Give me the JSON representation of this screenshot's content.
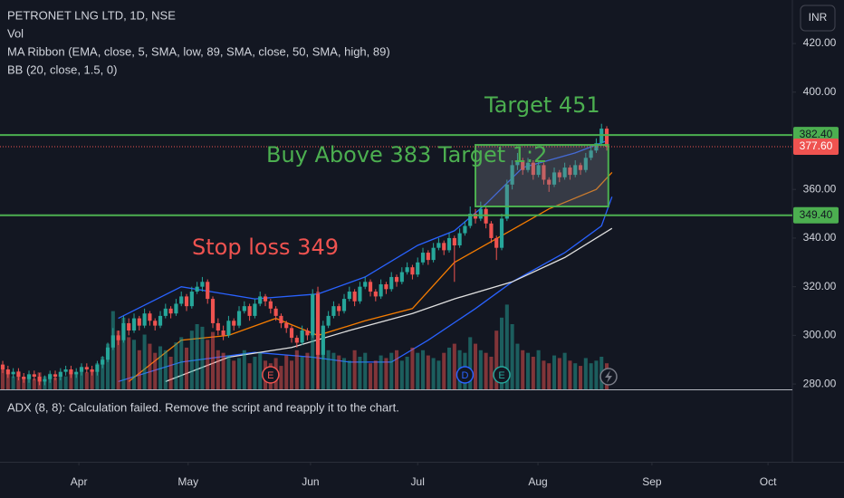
{
  "chart_data": {
    "type": "candlestick",
    "title": "PETRONET LNG LTD, 1D, NSE",
    "indicators": [
      "Vol",
      "MA Ribbon (EMA, close, 5, SMA, low, 89, SMA, close, 50, SMA, high, 89)",
      "BB (20, close, 1.5, 0)"
    ],
    "currency": "INR",
    "lower_pane_message": "ADX (8, 8): Calculation failed. Remove the script and reapply it to the chart.",
    "up_color": "#26a69a",
    "down_color": "#ef5350",
    "xlim": [
      -0.52,
      150.34
    ],
    "ylim": [
      277.8,
      437.9
    ],
    "yticks": [
      {
        "value": 420,
        "label": "420.00"
      },
      {
        "value": 400,
        "label": "400.00"
      },
      {
        "value": 360,
        "label": "360.00"
      },
      {
        "value": 340,
        "label": "340.00"
      },
      {
        "value": 320,
        "label": "320.00"
      },
      {
        "value": 300,
        "label": "300.00"
      },
      {
        "value": 280,
        "label": "280.00"
      }
    ],
    "xticks": [
      {
        "value": 14.5,
        "label": "Apr"
      },
      {
        "value": 35.3,
        "label": "May"
      },
      {
        "value": 58.6,
        "label": "Jun"
      },
      {
        "value": 79,
        "label": "Jul"
      },
      {
        "value": 101.9,
        "label": "Aug"
      },
      {
        "value": 123.6,
        "label": "Sep"
      },
      {
        "value": 145.7,
        "label": "Oct"
      }
    ],
    "candles": [
      [
        288,
        289.5,
        284.5,
        286
      ],
      [
        286,
        287.5,
        282.5,
        284
      ],
      [
        284,
        286.5,
        282.5,
        285
      ],
      [
        285,
        286.5,
        281.5,
        283
      ],
      [
        283,
        284.5,
        280.5,
        282
      ],
      [
        282,
        285.5,
        280.5,
        284
      ],
      [
        284,
        285.5,
        281.5,
        283
      ],
      [
        283,
        284.5,
        279.5,
        281
      ],
      [
        281,
        283.5,
        279.5,
        282
      ],
      [
        282,
        285.5,
        280.5,
        284
      ],
      [
        284,
        285.5,
        281.5,
        283
      ],
      [
        283,
        286.5,
        281.5,
        285
      ],
      [
        285,
        287.5,
        283.5,
        286
      ],
      [
        286,
        287.5,
        282.5,
        284
      ],
      [
        284,
        286.5,
        282.5,
        285
      ],
      [
        285,
        288.5,
        283.5,
        287
      ],
      [
        287,
        288.5,
        284.5,
        286
      ],
      [
        286,
        287.5,
        283.5,
        285
      ],
      [
        285,
        289.5,
        283.5,
        288
      ],
      [
        288,
        291.5,
        286.5,
        290
      ],
      [
        290,
        297,
        289,
        295
      ],
      [
        295,
        303,
        294,
        300
      ],
      [
        300,
        302,
        296,
        298
      ],
      [
        298,
        308,
        297,
        305
      ],
      [
        305,
        307,
        300,
        302
      ],
      [
        302,
        309,
        301,
        307
      ],
      [
        307,
        308,
        302,
        304
      ],
      [
        304,
        311,
        303,
        309
      ],
      [
        309,
        310,
        304,
        306
      ],
      [
        306,
        307,
        302,
        304
      ],
      [
        304,
        310,
        303,
        308
      ],
      [
        308,
        313,
        307,
        311
      ],
      [
        311,
        312,
        307,
        309
      ],
      [
        309,
        315,
        308,
        313
      ],
      [
        313,
        318,
        312,
        316
      ],
      [
        316,
        317,
        310,
        312
      ],
      [
        312,
        320,
        311,
        318
      ],
      [
        318,
        322,
        317,
        320
      ],
      [
        320,
        324,
        318,
        322
      ],
      [
        322,
        323,
        313,
        315
      ],
      [
        315,
        316,
        303,
        305
      ],
      [
        305,
        307,
        300,
        302
      ],
      [
        302,
        304,
        298,
        300
      ],
      [
        300,
        308,
        299,
        306
      ],
      [
        306,
        307,
        302,
        304
      ],
      [
        304,
        312,
        303,
        310
      ],
      [
        310,
        314,
        309,
        312
      ],
      [
        312,
        313,
        306,
        308
      ],
      [
        308,
        315,
        307,
        313
      ],
      [
        313,
        318,
        312,
        316
      ],
      [
        316,
        317,
        312,
        314
      ],
      [
        314,
        315,
        309,
        311
      ],
      [
        311,
        312,
        306,
        308
      ],
      [
        308,
        309,
        303,
        305
      ],
      [
        305,
        306,
        301,
        303
      ],
      [
        303,
        304,
        297,
        299
      ],
      [
        299,
        300,
        295,
        297
      ],
      [
        297,
        304,
        296,
        302
      ],
      [
        302,
        303,
        298,
        300
      ],
      [
        300,
        319,
        299,
        317
      ],
      [
        317,
        320,
        278,
        292
      ],
      [
        292,
        306,
        290,
        304
      ],
      [
        304,
        310,
        303,
        308
      ],
      [
        308,
        314,
        307,
        312
      ],
      [
        312,
        313,
        308,
        310
      ],
      [
        310,
        317,
        309,
        315
      ],
      [
        315,
        320,
        314,
        318
      ],
      [
        318,
        319,
        312,
        314
      ],
      [
        314,
        322,
        313,
        320
      ],
      [
        320,
        324,
        319,
        322
      ],
      [
        322,
        323,
        316,
        318
      ],
      [
        318,
        319,
        314,
        316
      ],
      [
        316,
        323,
        315,
        321
      ],
      [
        321,
        322,
        317,
        319
      ],
      [
        319,
        326,
        318,
        324
      ],
      [
        324,
        325,
        320,
        322
      ],
      [
        322,
        328,
        321,
        326
      ],
      [
        326,
        330,
        325,
        328
      ],
      [
        328,
        329,
        323,
        325
      ],
      [
        325,
        332,
        324,
        330
      ],
      [
        330,
        336,
        329,
        334
      ],
      [
        334,
        335,
        329,
        331
      ],
      [
        331,
        338,
        330,
        336
      ],
      [
        336,
        340,
        335,
        338
      ],
      [
        338,
        339,
        333,
        335
      ],
      [
        335,
        342,
        334,
        340
      ],
      [
        340,
        341,
        322,
        337
      ],
      [
        337,
        344,
        336,
        342
      ],
      [
        342,
        347,
        341,
        345
      ],
      [
        345,
        353,
        344,
        350
      ],
      [
        350,
        352,
        346,
        348
      ],
      [
        348,
        355,
        347,
        352
      ],
      [
        352,
        353,
        344,
        346
      ],
      [
        346,
        347,
        338,
        340
      ],
      [
        340,
        341,
        331,
        336
      ],
      [
        336,
        350,
        335,
        348
      ],
      [
        348,
        364,
        347,
        362
      ],
      [
        362,
        372,
        360,
        370
      ],
      [
        370,
        375,
        368,
        372
      ],
      [
        372,
        373,
        366,
        368
      ],
      [
        368,
        373,
        367,
        371
      ],
      [
        371,
        372,
        364,
        366
      ],
      [
        366,
        372,
        365,
        370
      ],
      [
        370,
        371,
        362,
        364
      ],
      [
        364,
        365,
        359,
        362
      ],
      [
        362,
        369,
        361,
        367
      ],
      [
        367,
        368,
        363,
        365
      ],
      [
        365,
        371,
        364,
        369
      ],
      [
        369,
        370,
        364,
        366
      ],
      [
        366,
        372,
        365,
        370
      ],
      [
        370,
        371,
        366,
        368
      ],
      [
        368,
        375,
        367,
        373
      ],
      [
        373,
        378,
        372,
        376
      ],
      [
        376,
        381,
        375,
        379
      ],
      [
        379,
        387,
        378,
        385
      ],
      [
        385,
        386,
        376,
        377.6
      ]
    ],
    "volumes": [
      18,
      12,
      10,
      14,
      9,
      11,
      8,
      13,
      10,
      12,
      9,
      11,
      10,
      14,
      12,
      16,
      13,
      15,
      20,
      25,
      35,
      60,
      45,
      55,
      40,
      38,
      30,
      42,
      35,
      28,
      33,
      30,
      25,
      36,
      40,
      32,
      45,
      50,
      48,
      38,
      44,
      30,
      28,
      26,
      22,
      24,
      30,
      20,
      25,
      28,
      22,
      20,
      24,
      18,
      26,
      22,
      30,
      25,
      28,
      55,
      75,
      45,
      30,
      28,
      26,
      24,
      22,
      30,
      25,
      28,
      20,
      22,
      26,
      24,
      28,
      30,
      22,
      25,
      32,
      28,
      30,
      26,
      24,
      22,
      28,
      32,
      35,
      30,
      28,
      40,
      35,
      30,
      28,
      25,
      45,
      55,
      65,
      50,
      35,
      30,
      28,
      25,
      30,
      22,
      20,
      26,
      24,
      28,
      22,
      20,
      18,
      24,
      20,
      22,
      25,
      20
    ],
    "lines": [
      {
        "color": "#2962ff",
        "x": [
          22,
          34,
          48,
          60,
          69,
          79,
          86,
          92,
          99,
          109,
          115
        ],
        "values": [
          307,
          320,
          315,
          317,
          324,
          337,
          343,
          354,
          369,
          375,
          380
        ]
      },
      {
        "color": "#2962ff",
        "x": [
          22,
          34,
          48,
          59,
          66,
          74,
          81,
          90,
          97,
          107,
          114,
          116
        ],
        "values": [
          281,
          289,
          293,
          291,
          289,
          289,
          298,
          311,
          322,
          334,
          345,
          357
        ]
      },
      {
        "color": "#f57c00",
        "x": [
          24,
          34,
          43,
          52,
          60,
          69,
          78,
          86,
          95,
          104,
          113,
          116
        ],
        "values": [
          281,
          298,
          300,
          307,
          300,
          306,
          311,
          330,
          341,
          352,
          360,
          367
        ]
      },
      {
        "color": "#e0e0e0",
        "x": [
          31,
          43,
          55,
          66,
          78,
          86,
          97,
          107,
          116
        ],
        "values": [
          281,
          291,
          295,
          302,
          309,
          315,
          322,
          332,
          344
        ]
      }
    ],
    "levels": [
      {
        "value": 382.4,
        "label": "382.40",
        "color": "#4caf50"
      },
      {
        "value": 349.4,
        "label": "349.40",
        "color": "#4caf50"
      }
    ],
    "last_price": {
      "value": 377.6,
      "label": "377.60",
      "color": "#ef5350"
    },
    "box": {
      "x": [
        90,
        115.3
      ],
      "y": [
        353,
        378.3
      ],
      "color": "#4caf50"
    },
    "annotations": [
      {
        "text": "Target 451",
        "color": "#4caf50"
      },
      {
        "text": "Buy Above 383 Target 1:2",
        "color": "#4caf50"
      },
      {
        "text": "Stop loss 349",
        "color": "#ef5350"
      }
    ],
    "events": [
      {
        "x": 51,
        "label": "E",
        "color": "#ef5350"
      },
      {
        "x": 88,
        "label": "D",
        "color": "#2962ff"
      },
      {
        "x": 95,
        "label": "E",
        "color": "#26a69a"
      }
    ]
  }
}
